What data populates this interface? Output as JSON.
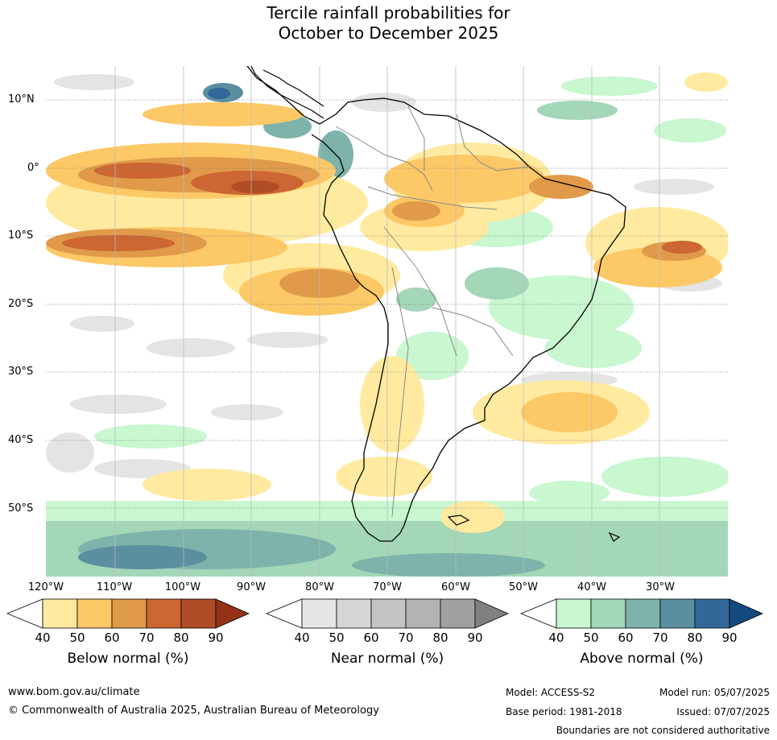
{
  "title_line1": "Tercile rainfall probabilities for",
  "title_line2": "October to December 2025",
  "lat_labels": [
    "10°N",
    "0°",
    "10°S",
    "20°S",
    "30°S",
    "40°S",
    "50°S"
  ],
  "lon_labels": [
    "120°W",
    "110°W",
    "100°W",
    "90°W",
    "80°W",
    "70°W",
    "60°W",
    "50°W",
    "40°W",
    "30°W"
  ],
  "colorbars": [
    {
      "label": "Below normal (%)",
      "ticks": [
        "40",
        "50",
        "60",
        "70",
        "80",
        "90"
      ],
      "colors": [
        "#ffffff",
        "#ffeaa0",
        "#fdc866",
        "#e09a4a",
        "#cc6632",
        "#b04c26",
        "#943218"
      ]
    },
    {
      "label": "Near normal (%)",
      "ticks": [
        "40",
        "50",
        "60",
        "70",
        "80",
        "90"
      ],
      "colors": [
        "#ffffff",
        "#e6e6e6",
        "#d6d6d6",
        "#c4c4c4",
        "#b3b3b3",
        "#a0a0a0",
        "#808080"
      ]
    },
    {
      "label": "Above normal (%)",
      "ticks": [
        "40",
        "50",
        "60",
        "70",
        "80",
        "90"
      ],
      "colors": [
        "#ffffff",
        "#c8f7d0",
        "#a4d6b8",
        "#7db3aa",
        "#5a8fa0",
        "#33679a",
        "#154a80"
      ]
    }
  ],
  "footer": {
    "url": "www.bom.gov.au/climate",
    "copyright": "© Commonwealth of Australia 2025, Australian Bureau of Meteorology",
    "model": "Model: ACCESS-S2",
    "base_period": "Base period: 1981-2018",
    "model_run": "Model run: 05/07/2025",
    "issued": "Issued: 07/07/2025",
    "disclaimer": "Boundaries are not considered authoritative"
  }
}
